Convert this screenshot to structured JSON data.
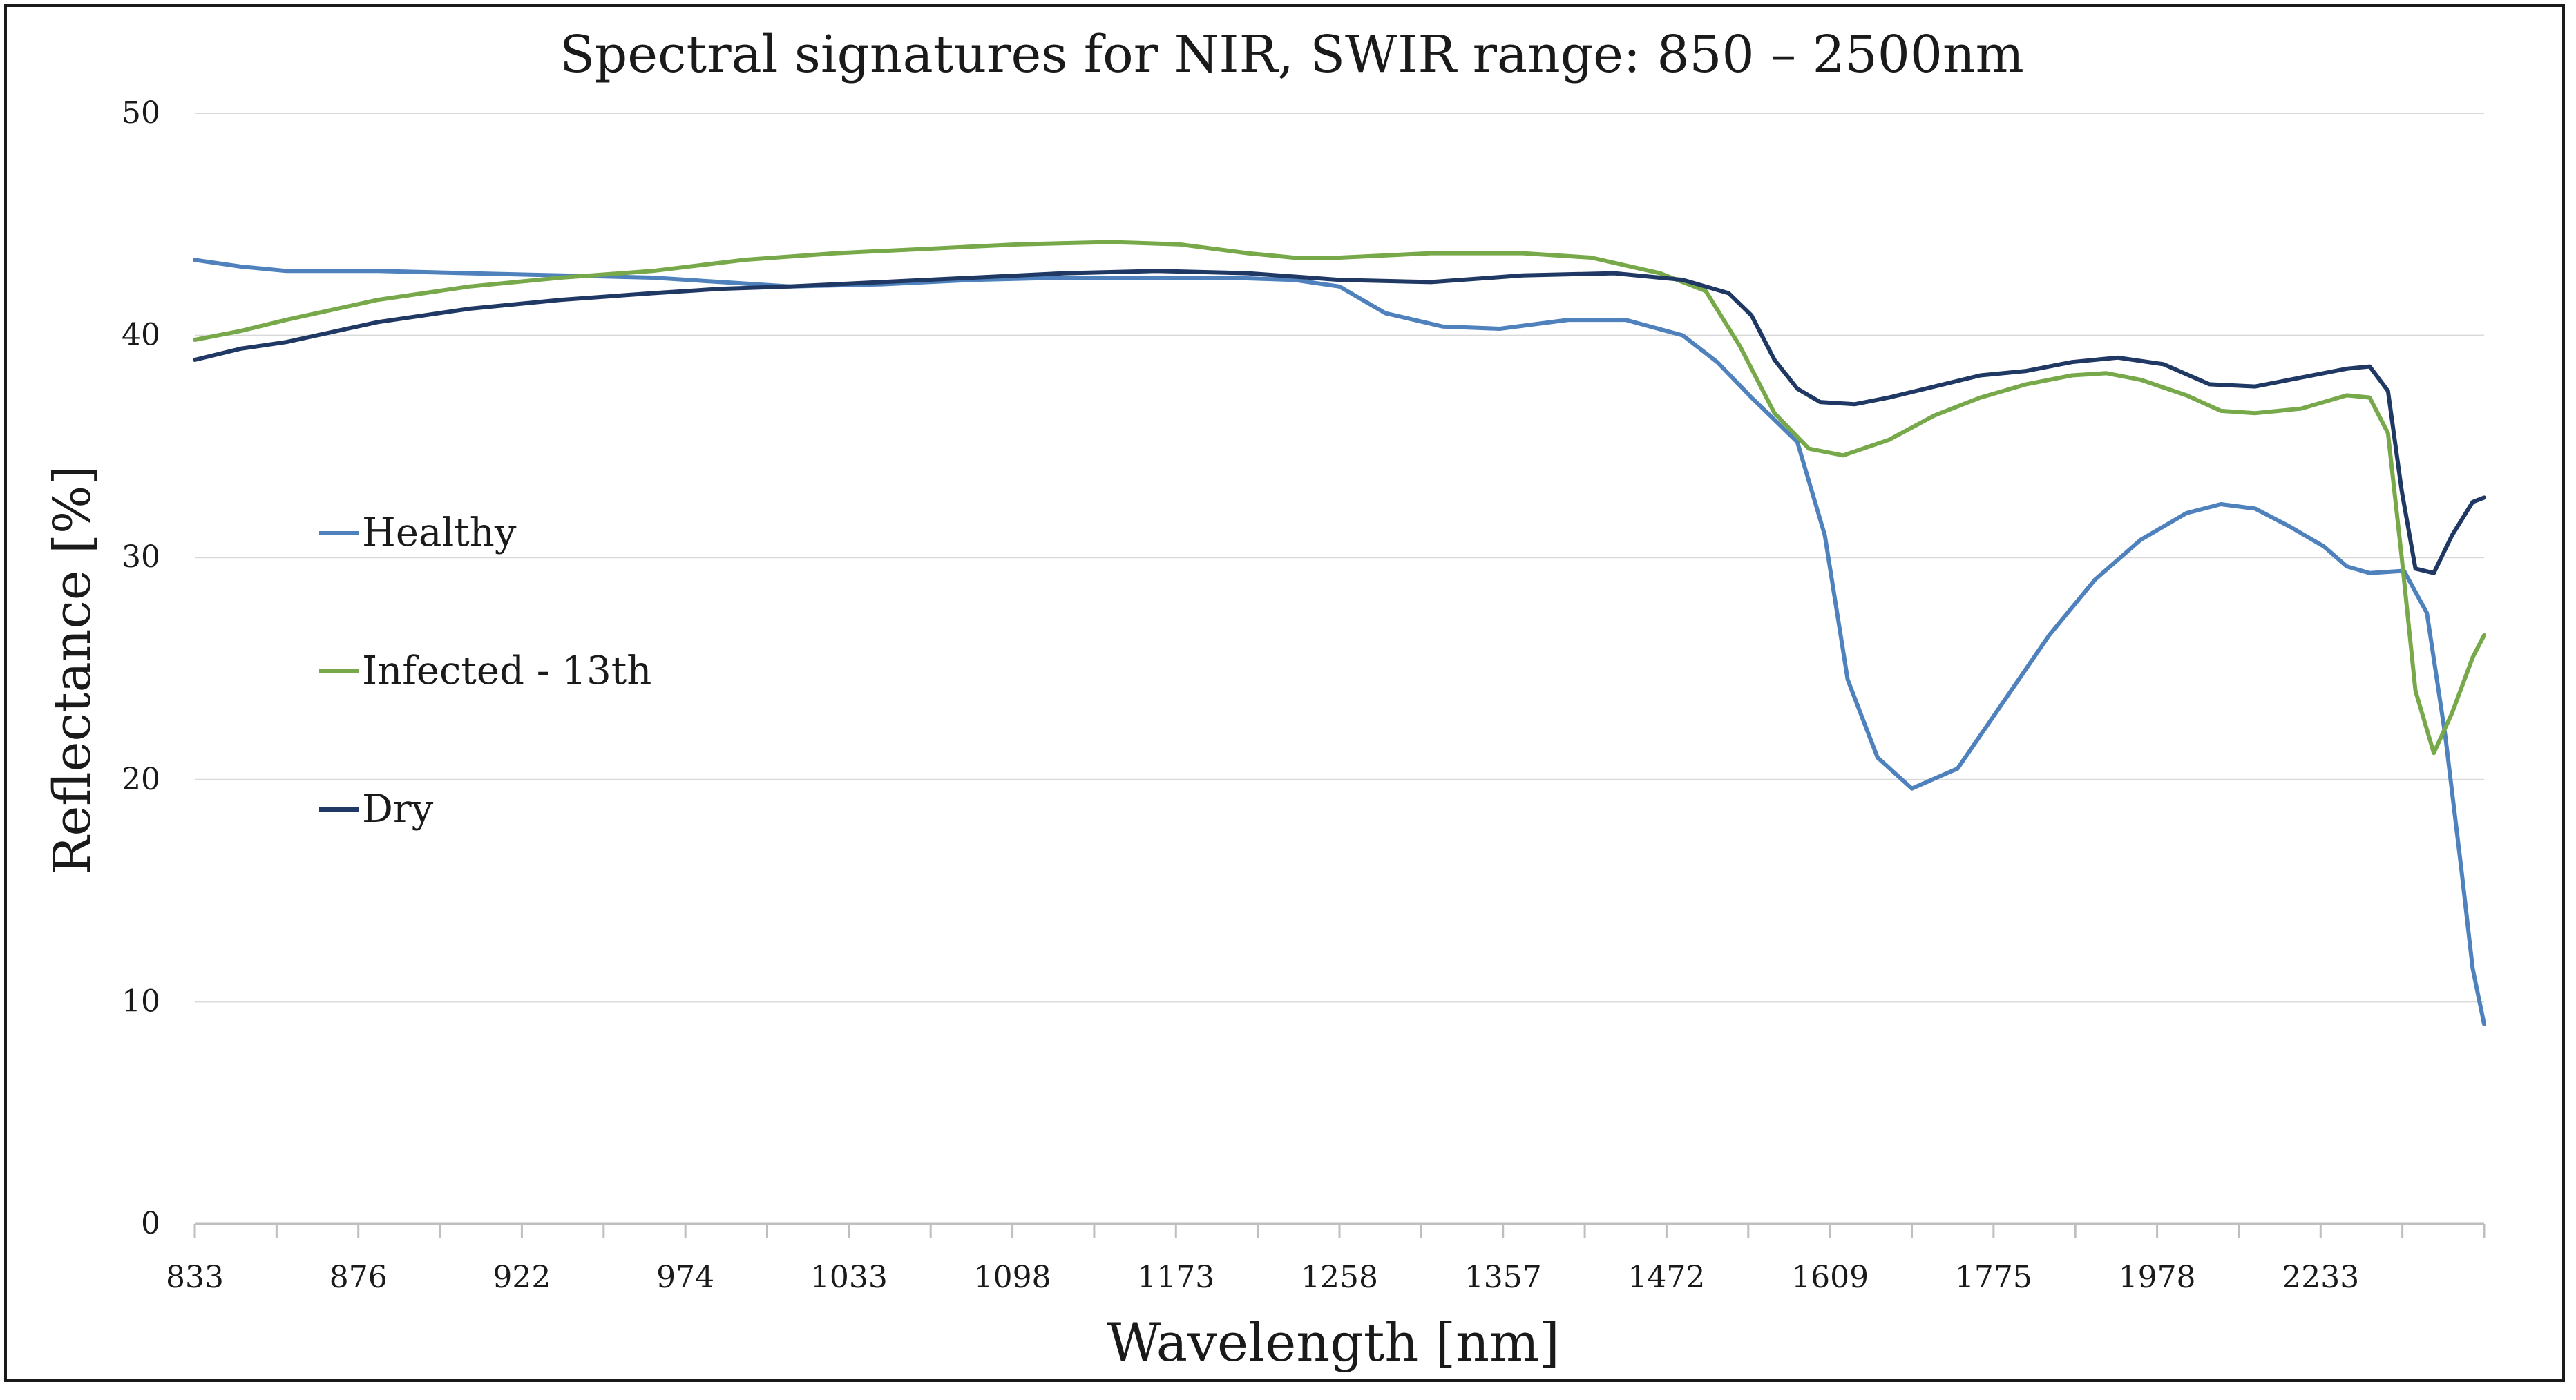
{
  "chart_data": {
    "type": "line",
    "title": "Spectral signatures for NIR, SWIR range: 850 – 2500nm",
    "xlabel": "Wavelength [nm]",
    "ylabel": "Reflectance [%]",
    "ylim": [
      0,
      50
    ],
    "yticks": [
      "0",
      "10",
      "20",
      "30",
      "40",
      "50"
    ],
    "grid": true,
    "legend_position": "left",
    "x_tick_labels": [
      "833",
      "876",
      "922",
      "974",
      "1033",
      "1098",
      "1173",
      "1258",
      "1357",
      "1472",
      "1609",
      "1775",
      "1978",
      "2233"
    ],
    "x_index_range": [
      0,
      1000
    ],
    "series": [
      {
        "name": "Healthy",
        "color": "#4f81bd",
        "points": [
          [
            0,
            43.4
          ],
          [
            20,
            43.1
          ],
          [
            40,
            42.9
          ],
          [
            80,
            42.9
          ],
          [
            120,
            42.8
          ],
          [
            160,
            42.7
          ],
          [
            200,
            42.6
          ],
          [
            230,
            42.4
          ],
          [
            260,
            42.2
          ],
          [
            300,
            42.3
          ],
          [
            340,
            42.5
          ],
          [
            380,
            42.6
          ],
          [
            420,
            42.6
          ],
          [
            450,
            42.6
          ],
          [
            480,
            42.5
          ],
          [
            500,
            42.2
          ],
          [
            520,
            41.0
          ],
          [
            545,
            40.4
          ],
          [
            570,
            40.3
          ],
          [
            600,
            40.7
          ],
          [
            625,
            40.7
          ],
          [
            650,
            40.0
          ],
          [
            665,
            38.8
          ],
          [
            680,
            37.2
          ],
          [
            700,
            35.2
          ],
          [
            712,
            31.0
          ],
          [
            722,
            24.5
          ],
          [
            735,
            21.0
          ],
          [
            750,
            19.6
          ],
          [
            770,
            20.5
          ],
          [
            790,
            23.5
          ],
          [
            810,
            26.5
          ],
          [
            830,
            29.0
          ],
          [
            850,
            30.8
          ],
          [
            870,
            32.0
          ],
          [
            885,
            32.4
          ],
          [
            900,
            32.2
          ],
          [
            915,
            31.4
          ],
          [
            930,
            30.5
          ],
          [
            940,
            29.6
          ],
          [
            950,
            29.3
          ],
          [
            965,
            29.4
          ],
          [
            975,
            27.5
          ],
          [
            983,
            22.0
          ],
          [
            990,
            16.0
          ],
          [
            995,
            11.5
          ],
          [
            1000,
            9.0
          ]
        ]
      },
      {
        "name": "Infected - 13th",
        "color": "#77a94a",
        "points": [
          [
            0,
            39.8
          ],
          [
            20,
            40.2
          ],
          [
            40,
            40.7
          ],
          [
            80,
            41.6
          ],
          [
            120,
            42.2
          ],
          [
            160,
            42.6
          ],
          [
            200,
            42.9
          ],
          [
            240,
            43.4
          ],
          [
            280,
            43.7
          ],
          [
            320,
            43.9
          ],
          [
            360,
            44.1
          ],
          [
            400,
            44.2
          ],
          [
            430,
            44.1
          ],
          [
            460,
            43.7
          ],
          [
            480,
            43.5
          ],
          [
            500,
            43.5
          ],
          [
            540,
            43.7
          ],
          [
            580,
            43.7
          ],
          [
            610,
            43.5
          ],
          [
            640,
            42.8
          ],
          [
            660,
            42.0
          ],
          [
            675,
            39.5
          ],
          [
            690,
            36.5
          ],
          [
            705,
            34.9
          ],
          [
            720,
            34.6
          ],
          [
            740,
            35.3
          ],
          [
            760,
            36.4
          ],
          [
            780,
            37.2
          ],
          [
            800,
            37.8
          ],
          [
            820,
            38.2
          ],
          [
            835,
            38.3
          ],
          [
            850,
            38.0
          ],
          [
            870,
            37.3
          ],
          [
            885,
            36.6
          ],
          [
            900,
            36.5
          ],
          [
            920,
            36.7
          ],
          [
            940,
            37.3
          ],
          [
            950,
            37.2
          ],
          [
            958,
            35.6
          ],
          [
            964,
            30.0
          ],
          [
            970,
            24.0
          ],
          [
            978,
            21.2
          ],
          [
            986,
            23.0
          ],
          [
            995,
            25.5
          ],
          [
            1000,
            26.5
          ]
        ]
      },
      {
        "name": "Dry",
        "color": "#1f3864",
        "points": [
          [
            0,
            38.9
          ],
          [
            20,
            39.4
          ],
          [
            40,
            39.7
          ],
          [
            80,
            40.6
          ],
          [
            120,
            41.2
          ],
          [
            160,
            41.6
          ],
          [
            200,
            41.9
          ],
          [
            230,
            42.1
          ],
          [
            260,
            42.2
          ],
          [
            300,
            42.4
          ],
          [
            340,
            42.6
          ],
          [
            380,
            42.8
          ],
          [
            420,
            42.9
          ],
          [
            460,
            42.8
          ],
          [
            500,
            42.5
          ],
          [
            540,
            42.4
          ],
          [
            580,
            42.7
          ],
          [
            620,
            42.8
          ],
          [
            650,
            42.5
          ],
          [
            670,
            41.9
          ],
          [
            680,
            40.9
          ],
          [
            690,
            38.9
          ],
          [
            700,
            37.6
          ],
          [
            710,
            37.0
          ],
          [
            725,
            36.9
          ],
          [
            740,
            37.2
          ],
          [
            760,
            37.7
          ],
          [
            780,
            38.2
          ],
          [
            800,
            38.4
          ],
          [
            820,
            38.8
          ],
          [
            840,
            39.0
          ],
          [
            860,
            38.7
          ],
          [
            880,
            37.8
          ],
          [
            900,
            37.7
          ],
          [
            920,
            38.1
          ],
          [
            940,
            38.5
          ],
          [
            950,
            38.6
          ],
          [
            958,
            37.5
          ],
          [
            964,
            33.0
          ],
          [
            970,
            29.5
          ],
          [
            978,
            29.3
          ],
          [
            986,
            31.0
          ],
          [
            995,
            32.5
          ],
          [
            1000,
            32.7
          ]
        ]
      }
    ]
  }
}
